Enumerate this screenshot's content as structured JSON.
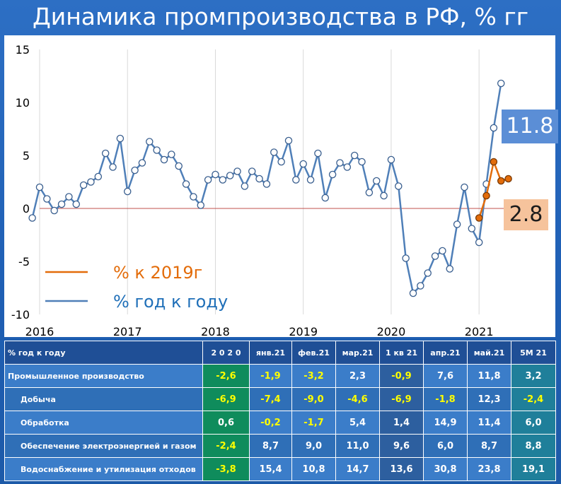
{
  "title": "Динамика промпроизводства в РФ, % гг",
  "callouts": {
    "yoy_last": "11.8",
    "vs2019_last": "2.8"
  },
  "colors": {
    "yoy": "#4f7fb8",
    "vs2019": "#e36c0a",
    "zero_line": "#c0504d",
    "callout_yoy": "#5b8ed6",
    "callout_2019": "#f6c39c"
  },
  "chart_data": {
    "type": "line",
    "title": "Динамика промпроизводства в РФ, % гг",
    "xlabel": "",
    "ylabel": "",
    "ylim": [
      -10,
      15
    ],
    "yticks": [
      -10,
      -5,
      0,
      5,
      10,
      15
    ],
    "xlim": [
      2016,
      2021.5
    ],
    "xticks": [
      {
        "x": 2016,
        "label": "2016"
      },
      {
        "x": 2017,
        "label": "2017"
      },
      {
        "x": 2018,
        "label": "2018"
      },
      {
        "x": 2019,
        "label": "2019"
      },
      {
        "x": 2020,
        "label": "2020"
      },
      {
        "x": 2021,
        "label": "2021"
      }
    ],
    "grid": "vertical",
    "legend": [
      {
        "name": "% к 2019г",
        "color": "#e36c0a"
      },
      {
        "name": "% год к году",
        "color": "#4f7fb8"
      }
    ],
    "series": [
      {
        "name": "% год к году",
        "x_start": "2015-12",
        "step": "month",
        "values": [
          -0.9,
          2.0,
          0.9,
          -0.2,
          0.4,
          1.1,
          0.4,
          2.2,
          2.5,
          3.0,
          5.2,
          3.9,
          6.6,
          1.6,
          3.6,
          4.3,
          6.3,
          5.5,
          4.6,
          5.1,
          4.0,
          2.3,
          1.1,
          0.3,
          2.7,
          3.2,
          2.7,
          3.1,
          3.5,
          2.1,
          3.5,
          2.8,
          2.3,
          5.3,
          4.4,
          6.4,
          2.7,
          4.2,
          2.7,
          5.2,
          1.0,
          3.2,
          4.3,
          3.9,
          5.0,
          4.4,
          1.5,
          2.6,
          1.2,
          4.6,
          2.1,
          -4.7,
          -8.0,
          -7.3,
          -6.1,
          -4.5,
          -4.0,
          -5.7,
          -1.5,
          2.0,
          -1.9,
          -3.2,
          2.3,
          7.6,
          11.8
        ]
      },
      {
        "name": "% к 2019г",
        "x_start": "2021-01",
        "step": "month",
        "values": [
          -0.9,
          1.2,
          4.4,
          2.6,
          2.8
        ]
      }
    ]
  },
  "table": {
    "header": [
      "% год к году",
      "2 0 2 0",
      "янв.21",
      "фев.21",
      "мар.21",
      "1 кв 21",
      "апр.21",
      "май.21",
      "5М 21"
    ],
    "rows": [
      {
        "label": "Промышленное производство",
        "values": [
          "-2,6",
          "-1,9",
          "-3,2",
          "2,3",
          "-0,9",
          "7,6",
          "11,8",
          "3,2"
        ]
      },
      {
        "label": "Добыча",
        "values": [
          "-6,9",
          "-7,4",
          "-9,0",
          "-4,6",
          "-6,9",
          "-1,8",
          "12,3",
          "-2,4"
        ]
      },
      {
        "label": "Обработка",
        "values": [
          "0,6",
          "-0,2",
          "-1,7",
          "5,4",
          "1,4",
          "14,9",
          "11,4",
          "6,0"
        ]
      },
      {
        "label": "Обеспечение электроэнергией и газом",
        "values": [
          "-2,4",
          "8,7",
          "9,0",
          "11,0",
          "9,6",
          "6,0",
          "8,7",
          "8,8"
        ]
      },
      {
        "label": "Водоснабжение и утилизация отходов",
        "values": [
          "-3,8",
          "15,4",
          "10,8",
          "14,7",
          "13,6",
          "30,8",
          "23,8",
          "19,1"
        ]
      }
    ]
  }
}
